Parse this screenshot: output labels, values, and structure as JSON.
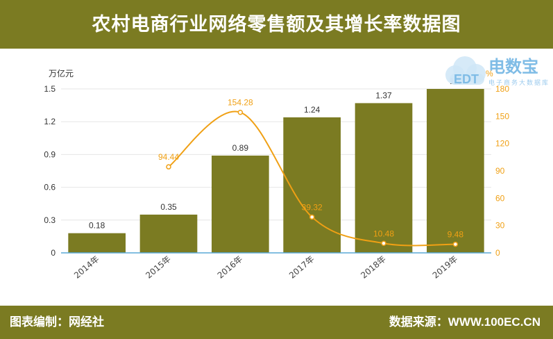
{
  "header": {
    "title": "农村电商行业网络零售额及其增长率数据图"
  },
  "footer": {
    "left": "图表编制：网经社",
    "right": "数据来源：WWW.100EC.CN"
  },
  "logo": {
    "brand": "电数宝",
    "sub": "电子商务大数据库",
    "mark": "EDT"
  },
  "chart_data": {
    "type": "bar",
    "categories": [
      "2014年",
      "2015年",
      "2016年",
      "2017年",
      "2018年",
      "2019年"
    ],
    "series": [
      {
        "type": "bar",
        "values": [
          0.18,
          0.35,
          0.89,
          1.24,
          1.37,
          1.5
        ],
        "labels": [
          "0.18",
          "0.35",
          "0.89",
          "1.24",
          "1.37",
          "1.5"
        ],
        "color": "#7b7b22"
      },
      {
        "type": "line",
        "values": [
          null,
          94.44,
          154.28,
          39.32,
          10.48,
          9.48
        ],
        "labels": [
          "",
          "94.44",
          "154.28",
          "39.32",
          "10.48",
          "9.48"
        ],
        "color": "#f0a014",
        "smooth": true
      }
    ],
    "y_left": {
      "label": "万亿元",
      "ticks": [
        "0",
        "0.3",
        "0.6",
        "0.9",
        "1.2",
        "1.5"
      ],
      "range": [
        0,
        1.5
      ]
    },
    "y_right": {
      "label": "%",
      "ticks": [
        "0",
        "30",
        "60",
        "90",
        "120",
        "150",
        "180"
      ],
      "range": [
        0,
        180
      ]
    },
    "grid": true
  }
}
